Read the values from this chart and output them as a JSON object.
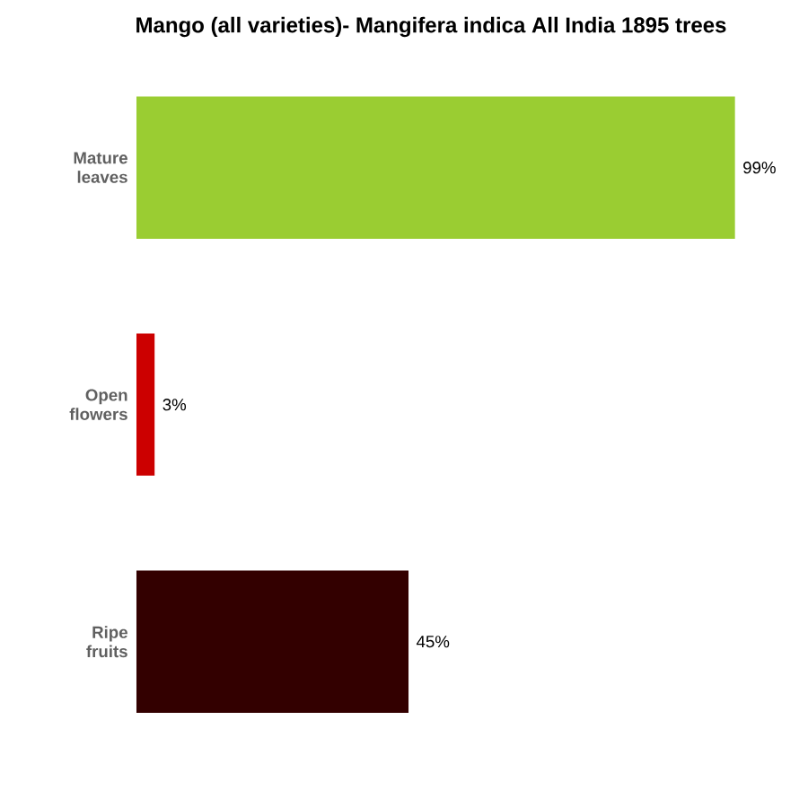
{
  "chart_data": {
    "type": "bar",
    "orientation": "horizontal",
    "title": "Mango (all varieties)- Mangifera indica All India 1895 trees",
    "categories": [
      "Mature leaves",
      "Open flowers",
      "Ripe fruits"
    ],
    "values": [
      99,
      3,
      45
    ],
    "colors": [
      "#9acd32",
      "#cc0000",
      "#330000"
    ],
    "value_labels": [
      "99%",
      "3%",
      "45%"
    ]
  }
}
